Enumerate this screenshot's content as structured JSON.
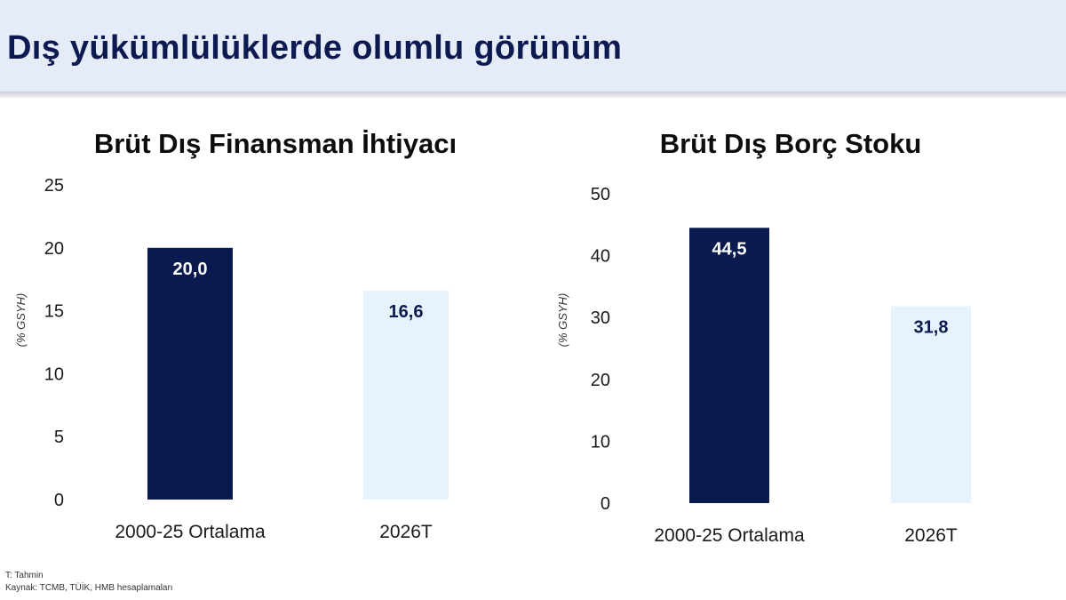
{
  "page_title": "Dış yükümlülüklerde olumlu görünüm",
  "footnotes": {
    "line1": "T: Tahmin",
    "line2": "Kaynak: TCMB, TÜİK, HMB hesaplamaları"
  },
  "colors": {
    "header_bg": "#e6ecf7",
    "title_text": "#0d1a52",
    "bar_dark": "#0b1a4e",
    "bar_light": "#e6f2fc",
    "label_dark": "#ffffff",
    "label_light": "#0b1a4e"
  },
  "chart_data": [
    {
      "type": "bar",
      "title": "Brüt Dış Finansman İhtiyacı",
      "ylabel": "(% GSYH)",
      "categories": [
        "2000-25 Ortalama",
        "2026T"
      ],
      "values": [
        20.0,
        16.6
      ],
      "data_labels": [
        "20,0",
        "16,6"
      ],
      "ylim": [
        0,
        25
      ],
      "yticks": [
        0,
        5,
        10,
        15,
        20,
        25
      ],
      "grid": false,
      "legend": "none"
    },
    {
      "type": "bar",
      "title": "Brüt Dış Borç Stoku",
      "ylabel": "(% GSYH)",
      "categories": [
        "2000-25 Ortalama",
        "2026T"
      ],
      "values": [
        44.5,
        31.8
      ],
      "data_labels": [
        "44,5",
        "31,8"
      ],
      "ylim": [
        0,
        50
      ],
      "yticks": [
        0,
        10,
        20,
        30,
        40,
        50
      ],
      "grid": false,
      "legend": "none"
    }
  ]
}
